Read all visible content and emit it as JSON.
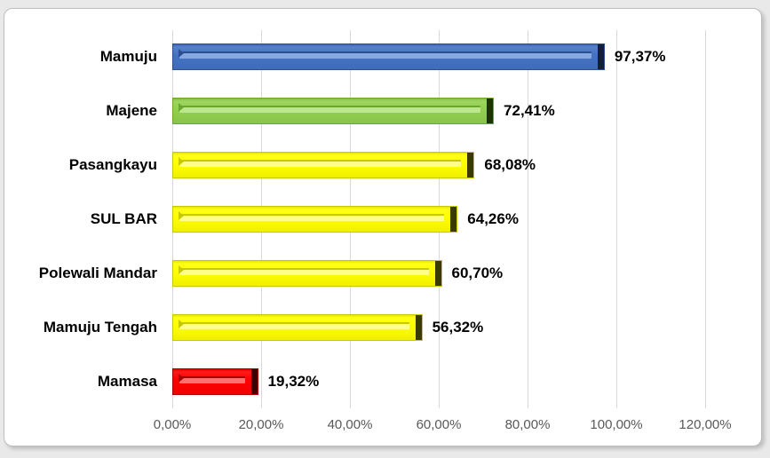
{
  "chart_data": {
    "type": "bar",
    "orientation": "horizontal",
    "title": "",
    "categories": [
      "Mamuju",
      "Majene",
      "Pasangkayu",
      "SUL BAR",
      "Polewali Mandar",
      "Mamuju Tengah",
      "Mamasa"
    ],
    "values": [
      97.37,
      72.41,
      68.08,
      64.26,
      60.7,
      56.32,
      19.32
    ],
    "value_labels": [
      "97,37%",
      "72,41%",
      "68,08%",
      "64,26%",
      "60,70%",
      "56,32%",
      "19,32%"
    ],
    "bar_colors": [
      "blue",
      "green",
      "yellow",
      "yellow",
      "yellow",
      "yellow",
      "red"
    ],
    "color_palette": {
      "blue": {
        "base": "#4472C4",
        "light": "#85A9E0",
        "dark": "#2C4E8E",
        "cap": "#131F38"
      },
      "green": {
        "base": "#92D050",
        "light": "#BDE78C",
        "dark": "#6BA62D",
        "cap": "#1C3306"
      },
      "yellow": {
        "base": "#FFFF00",
        "light": "#FFFF8C",
        "dark": "#C6C900",
        "cap": "#3A3B00"
      },
      "red": {
        "base": "#FF0000",
        "light": "#FF7070",
        "dark": "#A80000",
        "cap": "#3D0000"
      }
    },
    "xlim": [
      0,
      120
    ],
    "x_tick_labels": [
      "0,00%",
      "20,00%",
      "40,00%",
      "60,00%",
      "80,00%",
      "100,00%",
      "120,00%"
    ],
    "grid": true,
    "legend": "none",
    "gridline_color": "#D9D9D9",
    "tick_text_color": "#595959"
  },
  "frame": {
    "background": "#FFFFFF",
    "border_color": "#BDBDBD"
  }
}
